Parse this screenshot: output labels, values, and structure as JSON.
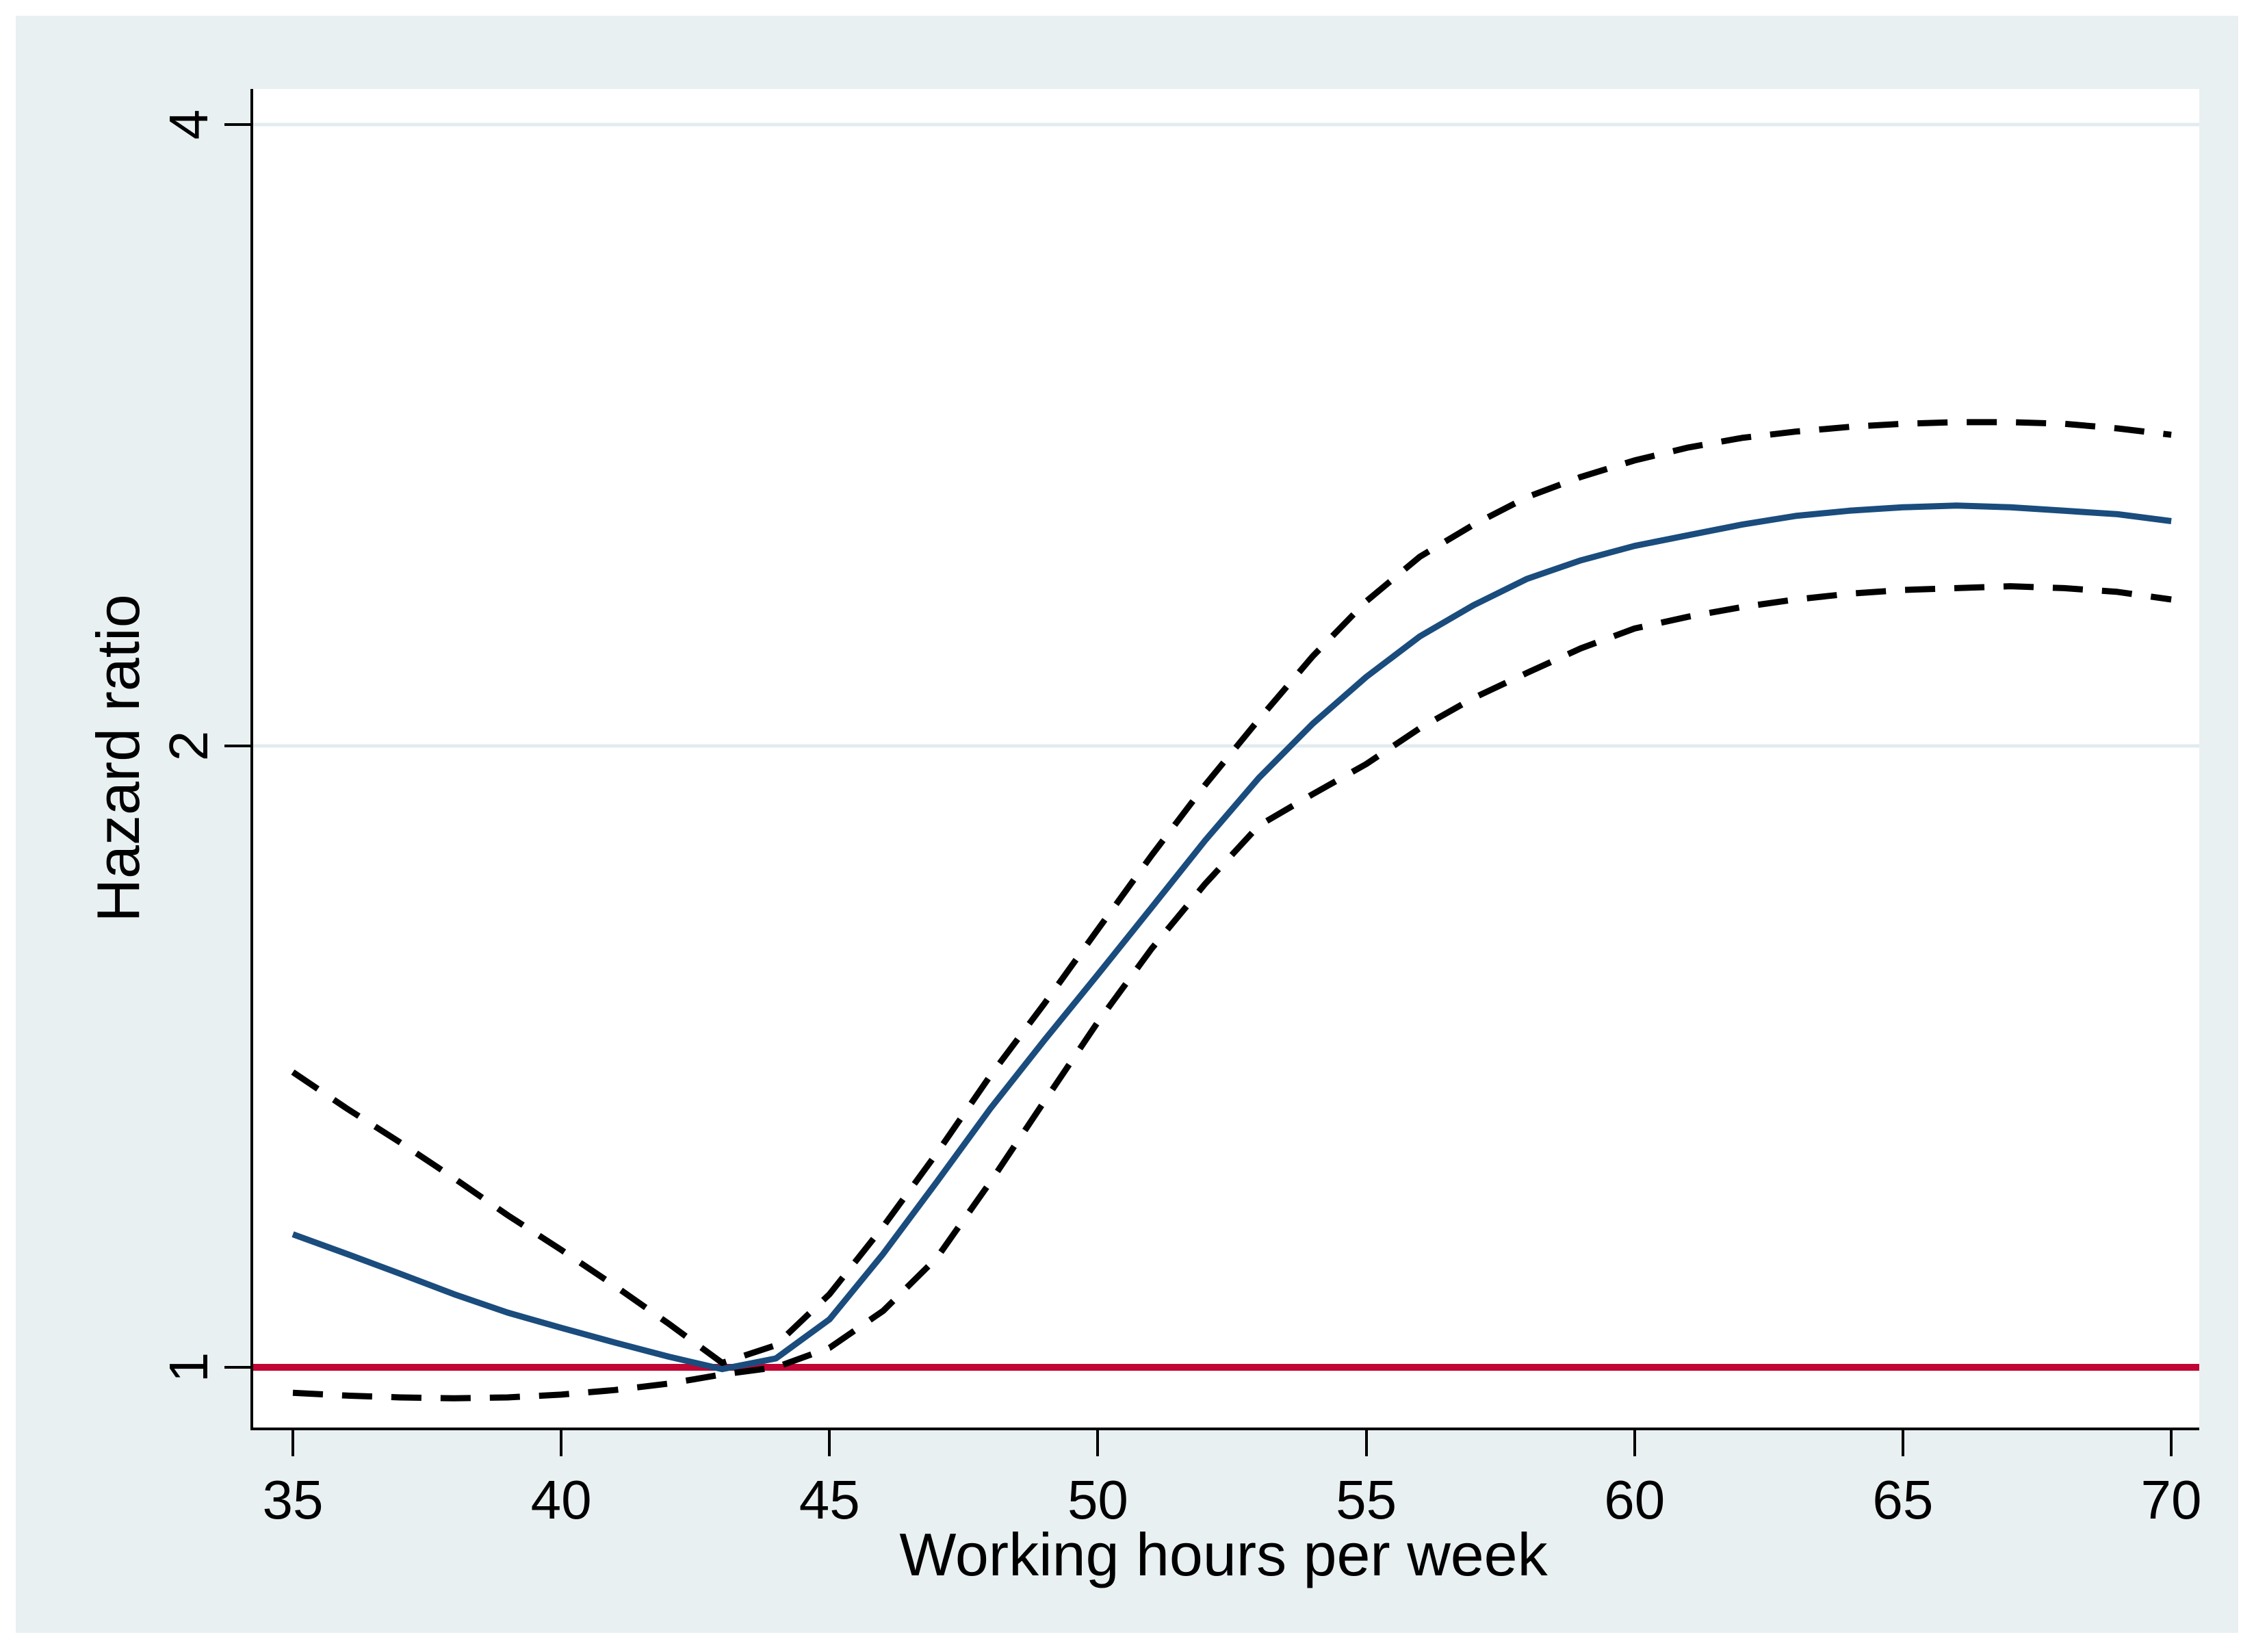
{
  "chart_data": {
    "type": "line",
    "title": "",
    "xlabel": "Working hours per week",
    "ylabel": "Hazard ratio",
    "x_ticks": [
      35,
      40,
      45,
      50,
      55,
      60,
      65,
      70
    ],
    "y_ticks": [
      1,
      2,
      4
    ],
    "y_scale": "log2",
    "xlim": [
      34.3,
      70.5
    ],
    "ylim": [
      0.935,
      4.16
    ],
    "grid": "horizontal-on-y-ticks",
    "legend": "none",
    "x": [
      35,
      36,
      37,
      38,
      39,
      40,
      41,
      42,
      43,
      44,
      45,
      46,
      47,
      48,
      49,
      50,
      51,
      52,
      53,
      54,
      55,
      56,
      57,
      58,
      59,
      60,
      61,
      62,
      63,
      64,
      65,
      66,
      67,
      68,
      69,
      70
    ],
    "series": [
      {
        "name": "hazard-ratio-estimate",
        "style": "solid",
        "color": "#1a4c7d",
        "values": [
          1.16,
          1.135,
          1.11,
          1.085,
          1.063,
          1.045,
          1.028,
          1.012,
          0.998,
          1.01,
          1.055,
          1.135,
          1.23,
          1.335,
          1.44,
          1.55,
          1.67,
          1.8,
          1.93,
          2.05,
          2.16,
          2.26,
          2.34,
          2.41,
          2.46,
          2.5,
          2.53,
          2.56,
          2.585,
          2.6,
          2.61,
          2.615,
          2.61,
          2.6,
          2.59,
          2.57
        ]
      },
      {
        "name": "ci-upper",
        "style": "dashed",
        "color": "#000000",
        "values": [
          1.39,
          1.335,
          1.285,
          1.235,
          1.185,
          1.14,
          1.095,
          1.05,
          1.005,
          1.025,
          1.085,
          1.17,
          1.27,
          1.385,
          1.5,
          1.63,
          1.77,
          1.915,
          2.06,
          2.21,
          2.35,
          2.47,
          2.56,
          2.64,
          2.7,
          2.75,
          2.79,
          2.82,
          2.84,
          2.855,
          2.865,
          2.87,
          2.87,
          2.865,
          2.85,
          2.83
        ]
      },
      {
        "name": "ci-lower",
        "style": "dashed",
        "color": "#000000",
        "values": [
          0.972,
          0.969,
          0.967,
          0.966,
          0.967,
          0.97,
          0.975,
          0.982,
          0.992,
          1.0,
          1.022,
          1.065,
          1.13,
          1.23,
          1.345,
          1.47,
          1.595,
          1.715,
          1.83,
          1.895,
          1.96,
          2.04,
          2.11,
          2.17,
          2.23,
          2.28,
          2.31,
          2.335,
          2.355,
          2.37,
          2.38,
          2.385,
          2.39,
          2.385,
          2.375,
          2.355
        ]
      }
    ],
    "reference_line": {
      "value": 1,
      "color": "#c10534"
    },
    "colors": {
      "panel_background": "#e9f0f2",
      "plot_background": "#ffffff",
      "gridline": "#e2ecef",
      "axis": "#000000"
    }
  }
}
